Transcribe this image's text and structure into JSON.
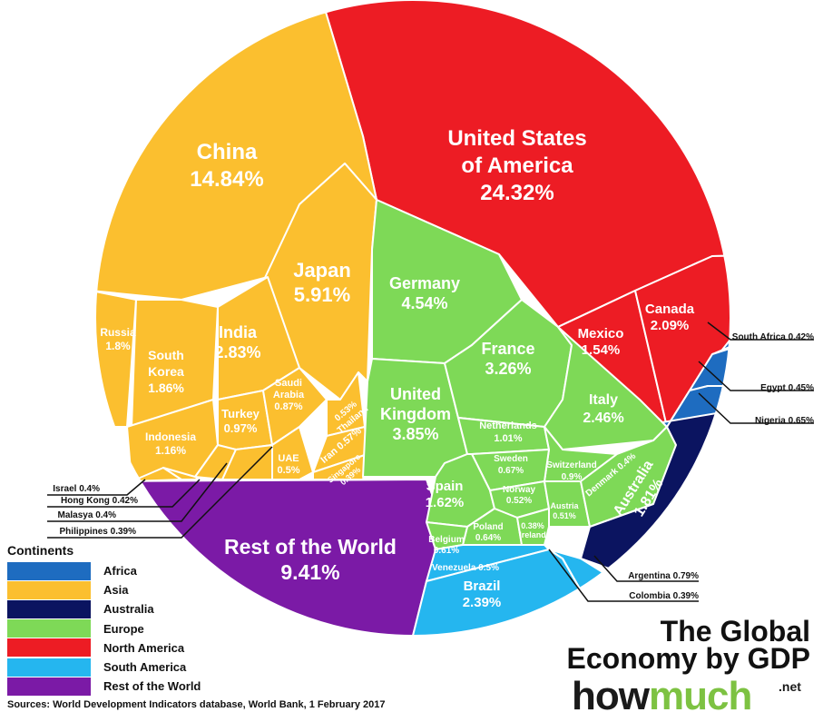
{
  "chart_data": {
    "type": "voronoi-treemap",
    "title": "The Global Economy by GDP",
    "unit": "% of world GDP",
    "groups": [
      {
        "name": "Africa",
        "color": "#1e6cc0"
      },
      {
        "name": "Asia",
        "color": "#fbbf2f"
      },
      {
        "name": "Australia",
        "color": "#0b1460"
      },
      {
        "name": "Europe",
        "color": "#7ed957"
      },
      {
        "name": "North America",
        "color": "#ed1c24"
      },
      {
        "name": "South America",
        "color": "#25b6ef"
      },
      {
        "name": "Rest of the World",
        "color": "#7b1aa6"
      }
    ],
    "cells": [
      {
        "label": "United States of America",
        "display": [
          "United States",
          "of America",
          "24.32%"
        ],
        "group": "North America",
        "value": 24.32
      },
      {
        "label": "Canada",
        "display": [
          "Canada",
          "2.09%"
        ],
        "group": "North America",
        "value": 2.09
      },
      {
        "label": "Mexico",
        "display": [
          "Mexico",
          "1.54%"
        ],
        "group": "North America",
        "value": 1.54
      },
      {
        "label": "China",
        "display": [
          "China",
          "14.84%"
        ],
        "group": "Asia",
        "value": 14.84
      },
      {
        "label": "Japan",
        "display": [
          "Japan",
          "5.91%"
        ],
        "group": "Asia",
        "value": 5.91
      },
      {
        "label": "India",
        "display": [
          "India",
          "2.83%"
        ],
        "group": "Asia",
        "value": 2.83
      },
      {
        "label": "South Korea",
        "display": [
          "South",
          "Korea",
          "1.86%"
        ],
        "group": "Asia",
        "value": 1.86
      },
      {
        "label": "Russia",
        "display": [
          "Russia",
          "1.8%"
        ],
        "group": "Asia",
        "value": 1.8
      },
      {
        "label": "Indonesia",
        "display": [
          "Indonesia",
          "1.16%"
        ],
        "group": "Asia",
        "value": 1.16
      },
      {
        "label": "Turkey",
        "display": [
          "Turkey",
          "0.97%"
        ],
        "group": "Asia",
        "value": 0.97
      },
      {
        "label": "Saudi Arabia",
        "display": [
          "Saudi",
          "Arabia",
          "0.87%"
        ],
        "group": "Asia",
        "value": 0.87
      },
      {
        "label": "Iran",
        "display": [
          "Iran 0.57%"
        ],
        "group": "Asia",
        "value": 0.57
      },
      {
        "label": "Thailand",
        "display": [
          "0.53%",
          "Thailand"
        ],
        "group": "Asia",
        "value": 0.53
      },
      {
        "label": "UAE",
        "display": [
          "UAE",
          "0.5%"
        ],
        "group": "Asia",
        "value": 0.5
      },
      {
        "label": "Singapore",
        "display": [
          "Singapore",
          "0.39%"
        ],
        "group": "Asia",
        "value": 0.39
      },
      {
        "label": "Israel",
        "display": [
          "Israel 0.4%"
        ],
        "group": "Asia",
        "value": 0.4
      },
      {
        "label": "Hong Kong",
        "display": [
          "Hong Kong 0.42%"
        ],
        "group": "Asia",
        "value": 0.42
      },
      {
        "label": "Malasya",
        "display": [
          "Malasya 0.4%"
        ],
        "group": "Asia",
        "value": 0.4
      },
      {
        "label": "Philippines",
        "display": [
          "Philippines 0.39%"
        ],
        "group": "Asia",
        "value": 0.39
      },
      {
        "label": "Germany",
        "display": [
          "Germany",
          "4.54%"
        ],
        "group": "Europe",
        "value": 4.54
      },
      {
        "label": "United Kingdom",
        "display": [
          "United",
          "Kingdom",
          "3.85%"
        ],
        "group": "Europe",
        "value": 3.85
      },
      {
        "label": "France",
        "display": [
          "France",
          "3.26%"
        ],
        "group": "Europe",
        "value": 3.26
      },
      {
        "label": "Italy",
        "display": [
          "Italy",
          "2.46%"
        ],
        "group": "Europe",
        "value": 2.46
      },
      {
        "label": "Spain",
        "display": [
          "Spain",
          "1.62%"
        ],
        "group": "Europe",
        "value": 1.62
      },
      {
        "label": "Netherlands",
        "display": [
          "Netherlands",
          "1.01%"
        ],
        "group": "Europe",
        "value": 1.01
      },
      {
        "label": "Switzerland",
        "display": [
          "Switzerland",
          "0.9%"
        ],
        "group": "Europe",
        "value": 0.9
      },
      {
        "label": "Sweden",
        "display": [
          "Sweden",
          "0.67%"
        ],
        "group": "Europe",
        "value": 0.67
      },
      {
        "label": "Poland",
        "display": [
          "Poland",
          "0.64%"
        ],
        "group": "Europe",
        "value": 0.64
      },
      {
        "label": "Belgium",
        "display": [
          "Belgium",
          "0.61%"
        ],
        "group": "Europe",
        "value": 0.61
      },
      {
        "label": "Norway",
        "display": [
          "Norway",
          "0.52%"
        ],
        "group": "Europe",
        "value": 0.52
      },
      {
        "label": "Austria",
        "display": [
          "Austria",
          "0.51%"
        ],
        "group": "Europe",
        "value": 0.51
      },
      {
        "label": "Denmark",
        "display": [
          "Denmark 0.4%"
        ],
        "group": "Europe",
        "value": 0.4
      },
      {
        "label": "Ireland",
        "display": [
          "0.38%",
          "Ireland"
        ],
        "group": "Europe",
        "value": 0.38
      },
      {
        "label": "Australia",
        "display": [
          "Australia",
          "1.81%"
        ],
        "group": "Australia",
        "value": 1.81
      },
      {
        "label": "South Africa",
        "display": [
          "South Africa 0.42%"
        ],
        "group": "Africa",
        "value": 0.42
      },
      {
        "label": "Egypt",
        "display": [
          "Egypt 0.45%"
        ],
        "group": "Africa",
        "value": 0.45
      },
      {
        "label": "Nigeria",
        "display": [
          "Nigeria 0.65%"
        ],
        "group": "Africa",
        "value": 0.65
      },
      {
        "label": "Brazil",
        "display": [
          "Brazil",
          "2.39%"
        ],
        "group": "South America",
        "value": 2.39
      },
      {
        "label": "Argentina",
        "display": [
          "Argentina 0.79%"
        ],
        "group": "South America",
        "value": 0.79
      },
      {
        "label": "Venezuela",
        "display": [
          "Venezuela 0.5%"
        ],
        "group": "South America",
        "value": 0.5
      },
      {
        "label": "Colombia",
        "display": [
          "Colombia 0.39%"
        ],
        "group": "South America",
        "value": 0.39
      },
      {
        "label": "Rest of the World",
        "display": [
          "Rest of the World",
          "9.41%"
        ],
        "group": "Rest of the World",
        "value": 9.41
      }
    ]
  },
  "legend": {
    "title": "Continents",
    "items": [
      {
        "label": "Africa",
        "color": "#1e6cc0"
      },
      {
        "label": "Asia",
        "color": "#fbbf2f"
      },
      {
        "label": "Australia",
        "color": "#0b1460"
      },
      {
        "label": "Europe",
        "color": "#7ed957"
      },
      {
        "label": "North America",
        "color": "#ed1c24"
      },
      {
        "label": "South America",
        "color": "#25b6ef"
      },
      {
        "label": "Rest of the World",
        "color": "#7b1aa6"
      }
    ]
  },
  "branding": {
    "title_line1": "The Global",
    "title_line2": "Economy by GDP",
    "logo_dark": "how",
    "logo_green": "much",
    "logo_suffix": ".net"
  },
  "source": "Sources: World Development Indicators database, World Bank, 1 February 2017"
}
